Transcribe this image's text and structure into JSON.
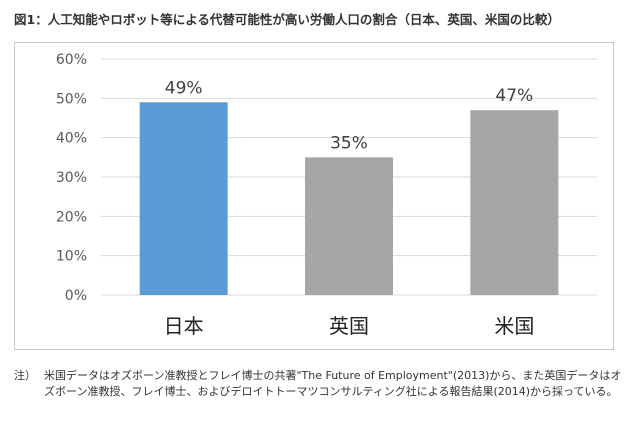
{
  "title": "図1：人工知能やロボット等による代替可能性が高い労働人口の割合（日本、英国、米国の比較）",
  "colors": {
    "highlight": "#5b9bd5",
    "default": "#a6a6a6",
    "grid": "#d9d9d9"
  },
  "chart_data": {
    "type": "bar",
    "categories": [
      "日本",
      "英国",
      "米国"
    ],
    "values": [
      49,
      35,
      47
    ],
    "value_labels": [
      "49%",
      "35%",
      "47%"
    ],
    "bar_colors": [
      "#5b9bd5",
      "#a6a6a6",
      "#a6a6a6"
    ],
    "ylim": [
      0,
      60
    ],
    "yticks": [
      "0%",
      "10%",
      "20%",
      "30%",
      "40%",
      "50%",
      "60%"
    ],
    "ytick_values": [
      0,
      10,
      20,
      30,
      40,
      50,
      60
    ],
    "grid": true,
    "legend": "none"
  },
  "note": {
    "mark": "注）",
    "text": "米国データはオズボーン准教授とフレイ博士の共著\"The Future of Employment\"(2013)から、また英国データはオズボーン准教授、フレイ博士、およびデロイトトーマツコンサルティング社による報告結果(2014)から採っている。"
  }
}
